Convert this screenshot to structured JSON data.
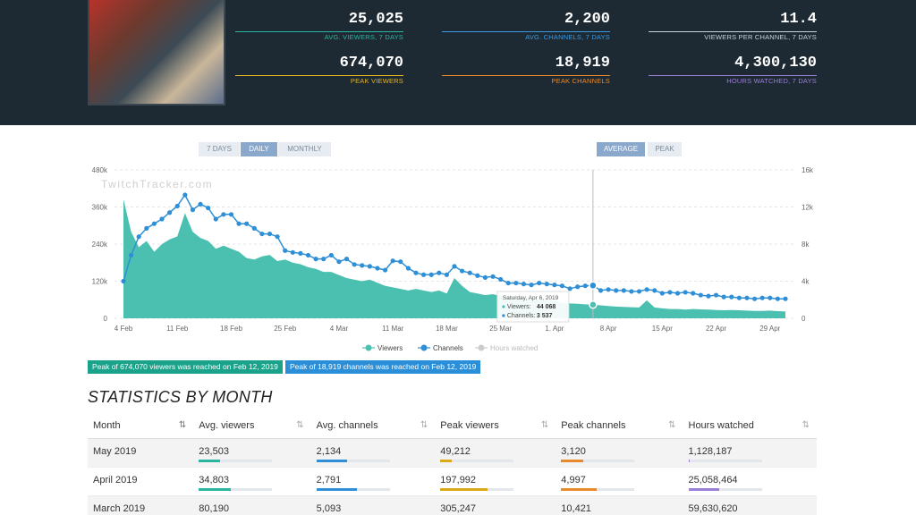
{
  "header": {
    "stats": [
      {
        "value": "25,025",
        "label": "AVG. VIEWERS, 7 DAYS"
      },
      {
        "value": "2,200",
        "label": "AVG. CHANNELS, 7 DAYS"
      },
      {
        "value": "11.4",
        "label": "VIEWERS PER CHANNEL, 7 DAYS"
      },
      {
        "value": "674,070",
        "label": "PEAK VIEWERS"
      },
      {
        "value": "18,919",
        "label": "PEAK CHANNELS"
      },
      {
        "value": "4,300,130",
        "label": "HOURS WATCHED, 7 DAYS"
      }
    ]
  },
  "range_buttons": [
    "7 DAYS",
    "DAILY",
    "MONTHLY"
  ],
  "mode_buttons": [
    "AVERAGE",
    "PEAK"
  ],
  "chart_data": {
    "type": "area-line",
    "watermark": "TwitchTracker.com",
    "categories": [
      "4 Feb",
      null,
      null,
      null,
      null,
      null,
      null,
      "11 Feb",
      null,
      null,
      null,
      null,
      null,
      null,
      "18 Feb",
      null,
      null,
      null,
      null,
      null,
      null,
      "25 Feb",
      null,
      null,
      null,
      null,
      null,
      null,
      "4 Mar",
      null,
      null,
      null,
      null,
      null,
      null,
      "11 Mar",
      null,
      null,
      null,
      null,
      null,
      null,
      "18 Mar",
      null,
      null,
      null,
      null,
      null,
      null,
      "25 Mar",
      null,
      null,
      null,
      null,
      null,
      null,
      "1. Apr",
      null,
      null,
      null,
      null,
      null,
      null,
      "8 Apr",
      null,
      null,
      null,
      null,
      null,
      null,
      "15 Apr",
      null,
      null,
      null,
      null,
      null,
      null,
      "22 Apr",
      null,
      null,
      null,
      null,
      null,
      null,
      "29 Apr",
      null,
      null
    ],
    "series": [
      {
        "name": "Viewers",
        "color": "#4bc0b0",
        "axis": "y",
        "values": [
          385000,
          280000,
          230000,
          250000,
          215000,
          240000,
          255000,
          265000,
          340000,
          280000,
          260000,
          250000,
          225000,
          235000,
          225000,
          215000,
          195000,
          190000,
          200000,
          205000,
          185000,
          190000,
          180000,
          175000,
          165000,
          160000,
          150000,
          150000,
          140000,
          130000,
          125000,
          120000,
          125000,
          115000,
          105000,
          100000,
          95000,
          90000,
          95000,
          90000,
          85000,
          90000,
          80000,
          130000,
          105000,
          85000,
          80000,
          75000,
          78000,
          72000,
          70000,
          68000,
          65000,
          62000,
          60000,
          58000,
          55000,
          50000,
          48000,
          47000,
          45000,
          44068,
          42000,
          40000,
          38000,
          37000,
          36000,
          35000,
          58000,
          35000,
          32000,
          30000,
          30000,
          28000,
          30000,
          29000,
          28000,
          27000,
          26000,
          27000,
          26000,
          25000,
          24000,
          24000,
          25000,
          23000,
          22000
        ]
      },
      {
        "name": "Channels",
        "color": "#2e8fd6",
        "axis": "y2",
        "values": [
          4000,
          6800,
          8800,
          9700,
          10200,
          10700,
          11400,
          12100,
          13300,
          11700,
          12300,
          11900,
          10700,
          11200,
          11200,
          10200,
          10200,
          9700,
          9100,
          9100,
          8800,
          7300,
          7100,
          7000,
          6800,
          6400,
          6400,
          6800,
          6100,
          6400,
          5800,
          5700,
          5600,
          5400,
          5200,
          6200,
          6100,
          5400,
          4900,
          4700,
          4700,
          4900,
          4700,
          5600,
          5100,
          4900,
          4600,
          4400,
          4500,
          4200,
          3800,
          3800,
          3700,
          3600,
          3800,
          3700,
          3600,
          3500,
          3200,
          3400,
          3500,
          3537,
          3000,
          3100,
          3000,
          3000,
          2900,
          2900,
          3100,
          3000,
          2700,
          2800,
          2700,
          2800,
          2700,
          2500,
          2400,
          2500,
          2300,
          2300,
          2200,
          2200,
          2100,
          2200,
          2200,
          2100,
          2100
        ]
      }
    ],
    "hidden_series": [
      "Hours watched"
    ],
    "ylim": [
      0,
      480000
    ],
    "yticks": [
      0,
      {
        "value": 120000,
        "label": "120k"
      },
      {
        "value": 240000,
        "label": "240k"
      },
      {
        "value": 360000,
        "label": "360k"
      },
      {
        "value": 480000,
        "label": "480k"
      }
    ],
    "y2lim": [
      0,
      16000
    ],
    "y2ticks": [
      0,
      {
        "value": 4000,
        "label": "4k"
      },
      {
        "value": 8000,
        "label": "8k"
      },
      {
        "value": 12000,
        "label": "12k"
      },
      {
        "value": 16000,
        "label": "16k"
      }
    ],
    "grid": true,
    "legend": "bottom",
    "tooltip": {
      "index": 61,
      "title": "Saturday, Apr 6, 2019",
      "rows": [
        {
          "label": "Viewers:",
          "value": "44 068"
        },
        {
          "label": "Channels:",
          "value": "3 537"
        }
      ]
    }
  },
  "peak_notes": [
    "Peak of 674,070 viewers was reached on Feb 12, 2019",
    "Peak of 18,919 channels was reached on Feb 12, 2019"
  ],
  "table": {
    "title": "STATISTICS BY MONTH",
    "columns": [
      "Month",
      "Avg. viewers",
      "Avg. channels",
      "Peak viewers",
      "Peak channels",
      "Hours watched"
    ],
    "rows": [
      [
        "May 2019",
        "23,503",
        "2,134",
        "49,212",
        "3,120",
        "1,128,187"
      ],
      [
        "April 2019",
        "34,803",
        "2,791",
        "197,992",
        "4,997",
        "25,058,464"
      ],
      [
        "March 2019",
        "80,190",
        "5,093",
        "305,247",
        "10,421",
        "59,630,620"
      ]
    ]
  }
}
